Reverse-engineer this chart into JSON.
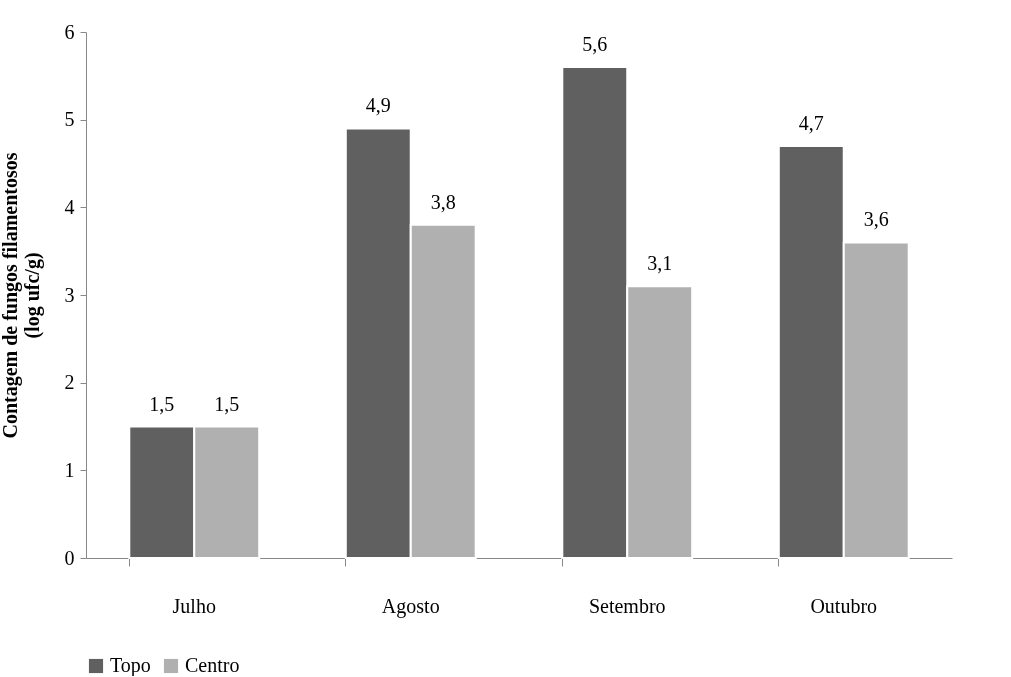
{
  "chart_data": {
    "type": "bar",
    "ylabel": "Contagem de fungos filamentosos\n(log ufc/g)",
    "categories": [
      "Julho",
      "Agosto",
      "Setembro",
      "Outubro"
    ],
    "series": [
      {
        "name": "Topo",
        "color": "#606060",
        "values": [
          1.5,
          4.9,
          5.6,
          4.7
        ],
        "value_labels": [
          "1,5",
          "4,9",
          "5,6",
          "4,7"
        ]
      },
      {
        "name": "Centro",
        "color": "#b0b0b0",
        "values": [
          1.5,
          3.8,
          3.1,
          3.6
        ],
        "value_labels": [
          "1,5",
          "3,8",
          "3,1",
          "3,6"
        ]
      }
    ],
    "ylim": [
      0,
      6
    ],
    "yticks": [
      0,
      1,
      2,
      3,
      4,
      5,
      6
    ],
    "grid": false,
    "legend": "bottom"
  }
}
